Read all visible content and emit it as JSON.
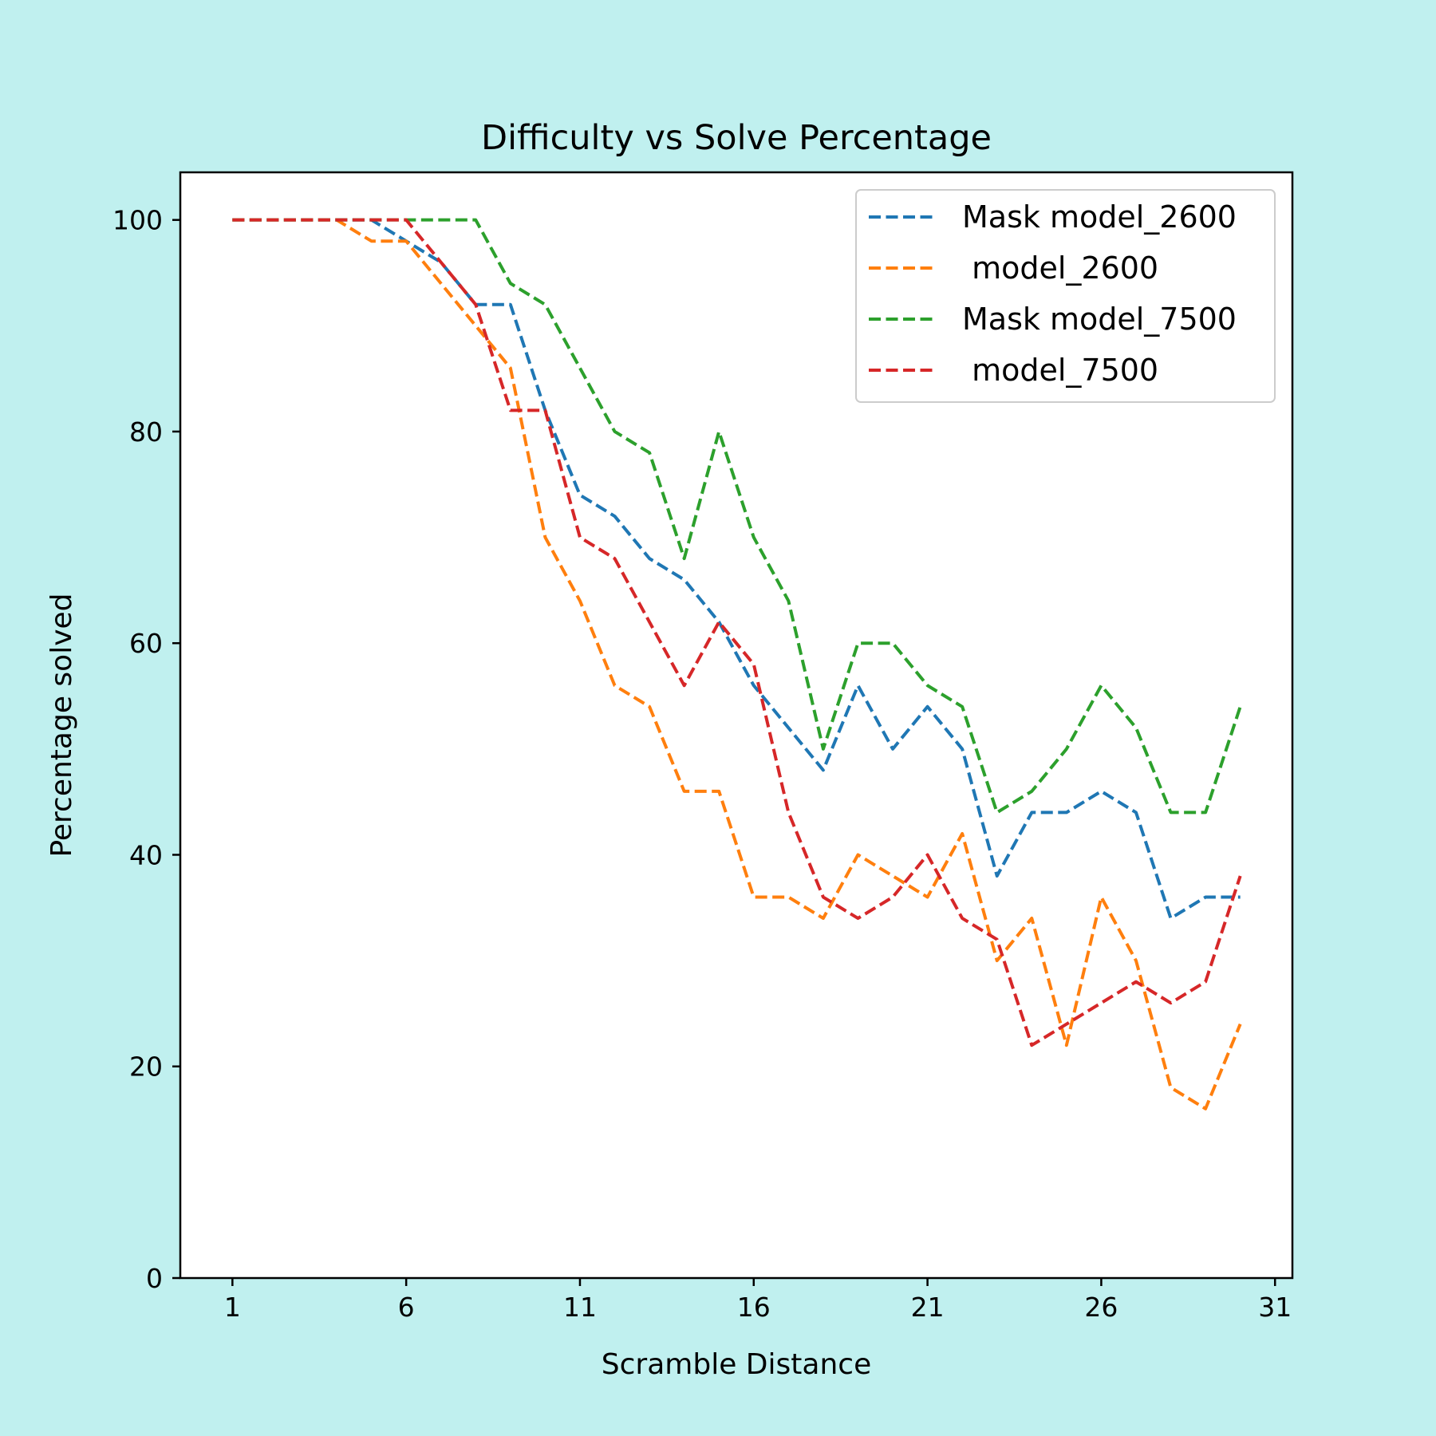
{
  "page": {
    "background": "#c0f0ef"
  },
  "chart_data": {
    "type": "line",
    "title": "Difficulty vs Solve Percentage",
    "xlabel": "Scramble Distance",
    "ylabel": "Percentage solved",
    "xlim": [
      -0.5,
      31.5
    ],
    "ylim": [
      0,
      104.5
    ],
    "xticks": [
      1,
      6,
      11,
      16,
      21,
      26,
      31
    ],
    "yticks": [
      0,
      20,
      40,
      60,
      80,
      100
    ],
    "grid": false,
    "legend_position": "top-right",
    "line_style": "dashed",
    "x": [
      1,
      2,
      3,
      4,
      5,
      6,
      7,
      8,
      9,
      10,
      11,
      12,
      13,
      14,
      15,
      16,
      17,
      18,
      19,
      20,
      21,
      22,
      23,
      24,
      25,
      26,
      27,
      28,
      29,
      30
    ],
    "series": [
      {
        "name": "Mask model_2600",
        "color": "#1f77b4",
        "values": [
          100,
          100,
          100,
          100,
          100,
          98,
          96,
          92,
          92,
          82,
          74,
          72,
          68,
          66,
          62,
          56,
          52,
          48,
          56,
          50,
          54,
          50,
          38,
          44,
          44,
          46,
          44,
          34,
          36,
          36
        ]
      },
      {
        "name": " model_2600",
        "color": "#ff7f0e",
        "values": [
          100,
          100,
          100,
          100,
          98,
          98,
          94,
          90,
          86,
          70,
          64,
          56,
          54,
          46,
          46,
          36,
          36,
          34,
          40,
          38,
          36,
          42,
          30,
          34,
          22,
          36,
          30,
          18,
          16,
          24
        ]
      },
      {
        "name": "Mask model_7500",
        "color": "#2ca02c",
        "values": [
          100,
          100,
          100,
          100,
          100,
          100,
          100,
          100,
          94,
          92,
          86,
          80,
          78,
          68,
          80,
          70,
          64,
          50,
          60,
          60,
          56,
          54,
          44,
          46,
          50,
          56,
          52,
          44,
          44,
          54
        ]
      },
      {
        "name": " model_7500",
        "color": "#d62728",
        "values": [
          100,
          100,
          100,
          100,
          100,
          100,
          96,
          92,
          82,
          82,
          70,
          68,
          62,
          56,
          62,
          58,
          44,
          36,
          34,
          36,
          40,
          34,
          32,
          22,
          24,
          26,
          28,
          26,
          28,
          38
        ]
      }
    ]
  }
}
